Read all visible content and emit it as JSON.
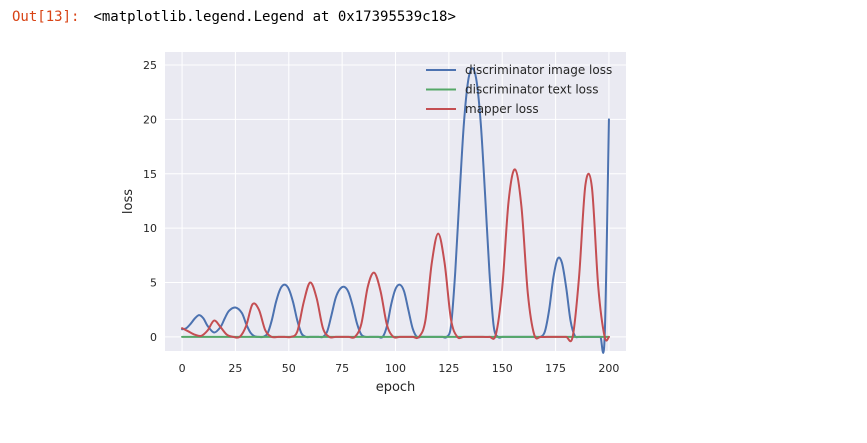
{
  "output": {
    "prompt": "Out[13]:",
    "text": "<matplotlib.legend.Legend at 0x17395539c18>"
  },
  "chart_data": {
    "type": "line",
    "xlabel": "epoch",
    "ylabel": "loss",
    "xlim": [
      -8,
      208
    ],
    "ylim": [
      -1.3,
      26.2
    ],
    "xticks": [
      0,
      25,
      50,
      75,
      100,
      125,
      150,
      175,
      200
    ],
    "yticks": [
      0,
      5,
      10,
      15,
      20,
      25
    ],
    "grid": true,
    "legend_position": "top-right",
    "series": [
      {
        "name": "discriminator image loss",
        "color": "#4c72b0",
        "x": [
          0,
          2,
          4,
          6,
          8,
          10,
          12,
          15,
          18,
          20,
          22,
          25,
          28,
          30,
          32,
          34,
          36,
          38,
          40,
          42,
          44,
          46,
          48,
          50,
          52,
          54,
          56,
          58,
          60,
          62,
          64,
          66,
          68,
          70,
          72,
          74,
          76,
          78,
          80,
          82,
          84,
          86,
          88,
          90,
          92,
          94,
          96,
          98,
          100,
          102,
          104,
          106,
          108,
          110,
          112,
          114,
          116,
          118,
          120,
          122,
          124,
          126,
          128,
          130,
          132,
          134,
          136,
          138,
          140,
          142,
          144,
          146,
          148,
          150,
          152,
          154,
          156,
          158,
          160,
          162,
          164,
          166,
          168,
          170,
          172,
          174,
          176,
          178,
          180,
          182,
          184,
          186,
          188,
          190,
          192,
          194,
          196,
          198,
          200
        ],
        "y": [
          0.7,
          0.8,
          1.2,
          1.7,
          2.0,
          1.7,
          1.0,
          0.4,
          0.9,
          1.7,
          2.4,
          2.7,
          2.2,
          1.2,
          0.4,
          0.05,
          0.0,
          0.0,
          0.3,
          1.5,
          3.2,
          4.4,
          4.8,
          4.4,
          3.2,
          1.5,
          0.3,
          0.0,
          0.0,
          0.0,
          0.0,
          0.0,
          0.5,
          2.0,
          3.6,
          4.4,
          4.6,
          4.1,
          2.8,
          1.2,
          0.2,
          0.0,
          0.0,
          0.0,
          0.0,
          0.0,
          1.0,
          3.0,
          4.4,
          4.8,
          4.2,
          2.5,
          0.8,
          0.0,
          0.0,
          0.0,
          0.0,
          0.0,
          0.0,
          0.0,
          0.0,
          1.0,
          6.0,
          13.0,
          19.5,
          23.5,
          24.7,
          23.5,
          19.5,
          13.0,
          6.0,
          1.0,
          0.0,
          0.0,
          0.0,
          0.0,
          0.0,
          0.0,
          0.0,
          0.0,
          0.0,
          0.0,
          0.0,
          0.5,
          2.5,
          5.5,
          7.2,
          6.8,
          4.5,
          1.5,
          0.1,
          0.0,
          0.0,
          0.0,
          0.0,
          0.0,
          0.0,
          0.0,
          20.0
        ]
      },
      {
        "name": "discriminator text loss",
        "color": "#55a868",
        "x": [
          0,
          200
        ],
        "y": [
          0.0,
          0.0
        ]
      },
      {
        "name": "mapper loss",
        "color": "#c44e52",
        "x": [
          0,
          3,
          6,
          9,
          12,
          15,
          18,
          21,
          24,
          27,
          30,
          33,
          36,
          39,
          42,
          45,
          48,
          51,
          54,
          57,
          60,
          63,
          66,
          69,
          72,
          75,
          78,
          81,
          84,
          87,
          90,
          93,
          96,
          99,
          102,
          105,
          108,
          111,
          114,
          117,
          120,
          123,
          126,
          129,
          132,
          135,
          138,
          141,
          144,
          147,
          150,
          153,
          156,
          159,
          162,
          165,
          168,
          171,
          174,
          177,
          180,
          183,
          186,
          189,
          192,
          195,
          198,
          200
        ],
        "y": [
          0.8,
          0.5,
          0.2,
          0.1,
          0.6,
          1.5,
          0.9,
          0.2,
          0.0,
          0.0,
          1.0,
          3.0,
          2.5,
          0.6,
          0.0,
          0.0,
          0.0,
          0.0,
          0.5,
          3.2,
          5.0,
          3.6,
          0.8,
          0.0,
          0.0,
          0.0,
          0.0,
          0.0,
          1.2,
          4.6,
          5.9,
          4.2,
          1.1,
          0.0,
          0.0,
          0.0,
          0.0,
          0.0,
          1.5,
          6.8,
          9.5,
          6.8,
          1.6,
          0.0,
          0.0,
          0.0,
          0.0,
          0.0,
          0.0,
          0.2,
          4.5,
          12.5,
          15.4,
          12.0,
          4.0,
          0.2,
          0.0,
          0.0,
          0.0,
          0.0,
          0.0,
          0.0,
          5.5,
          14.0,
          13.8,
          4.6,
          0.0,
          0.0
        ]
      }
    ]
  }
}
